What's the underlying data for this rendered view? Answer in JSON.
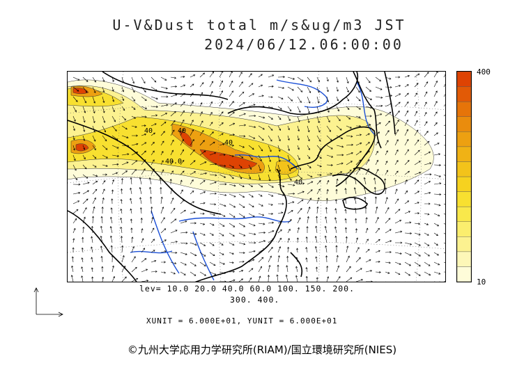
{
  "title": {
    "line1": "U-V&Dust total m/s&ug/m3 JST",
    "line2": "2024/06/12.06:00:00"
  },
  "colorbar": {
    "max_label": "400",
    "min_label": "10",
    "colors": [
      "#fefcd9",
      "#fdf7b8",
      "#fcf290",
      "#fbee6e",
      "#f9e84b",
      "#f8e030",
      "#f6d21f",
      "#f3c31a",
      "#f0b215",
      "#eda011",
      "#ea8c0d",
      "#e67409",
      "#e25a06",
      "#de4303"
    ]
  },
  "levels": {
    "line1": "lev= 10.0 20.0 40.0 60.0 100. 150. 200.",
    "line2": "300. 400."
  },
  "units": "XUNIT = 6.000E+01, YUNIT = 6.000E+01",
  "contour_labels": [
    "40.0",
    "40",
    "40",
    "40",
    "40"
  ],
  "copyright": "©九州大学応用力学研究所(RIAM)/国立環境研究所(NIES)",
  "style": {
    "coast_color": "#000000",
    "river_color": "#1a4fd6",
    "vector_color": "#000000"
  }
}
